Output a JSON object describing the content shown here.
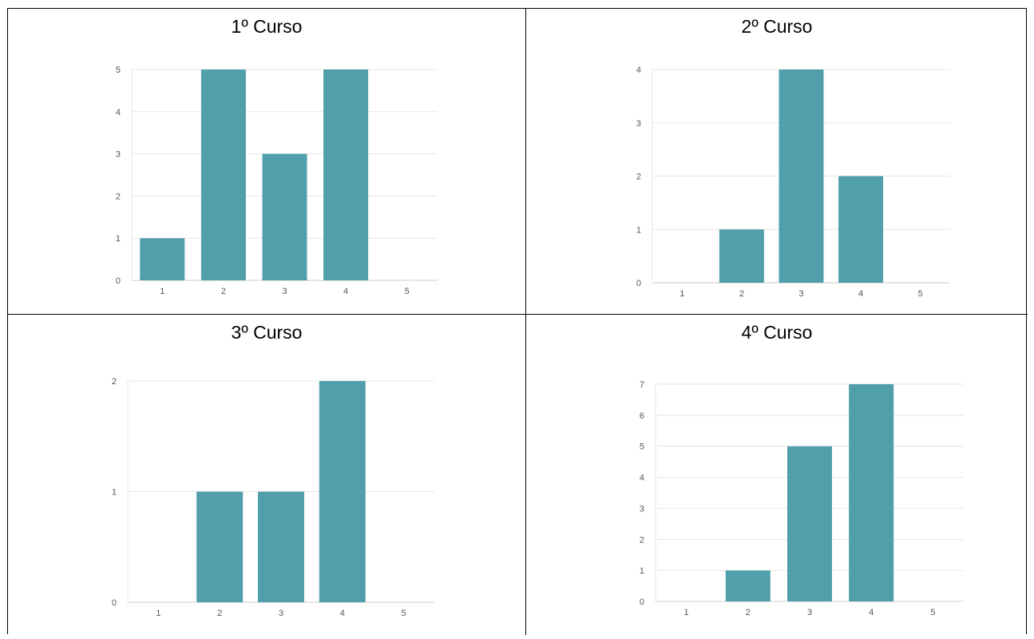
{
  "colors": {
    "bar": "#519fab",
    "grid": "#e6e6e6",
    "axis": "#cccccc",
    "tick_text": "#555555"
  },
  "panels": [
    {
      "title": "1º Curso"
    },
    {
      "title": "2º Curso"
    },
    {
      "title": "3º Curso"
    },
    {
      "title": "4º Curso"
    }
  ],
  "chart_data": [
    {
      "type": "bar",
      "title": "1º Curso",
      "categories": [
        "1",
        "2",
        "3",
        "4",
        "5"
      ],
      "values": [
        1,
        5,
        3,
        5,
        0
      ],
      "ylim": [
        0,
        5
      ],
      "yticks": [
        0,
        1,
        2,
        3,
        4,
        5
      ],
      "grid": true,
      "xlabel": "",
      "ylabel": ""
    },
    {
      "type": "bar",
      "title": "2º Curso",
      "categories": [
        "1",
        "2",
        "3",
        "4",
        "5"
      ],
      "values": [
        0,
        1,
        4,
        2,
        0
      ],
      "ylim": [
        0,
        4
      ],
      "yticks": [
        0,
        1,
        2,
        3,
        4
      ],
      "grid": true,
      "xlabel": "",
      "ylabel": ""
    },
    {
      "type": "bar",
      "title": "3º Curso",
      "categories": [
        "1",
        "2",
        "3",
        "4",
        "5"
      ],
      "values": [
        0,
        1,
        1,
        2,
        0
      ],
      "ylim": [
        0,
        2
      ],
      "yticks": [
        0,
        1,
        2
      ],
      "grid": true,
      "xlabel": "",
      "ylabel": ""
    },
    {
      "type": "bar",
      "title": "4º Curso",
      "categories": [
        "1",
        "2",
        "3",
        "4",
        "5"
      ],
      "values": [
        0,
        1,
        5,
        7,
        0
      ],
      "ylim": [
        0,
        7
      ],
      "yticks": [
        0,
        1,
        2,
        3,
        4,
        5,
        6,
        7
      ],
      "grid": true,
      "xlabel": "",
      "ylabel": ""
    }
  ]
}
